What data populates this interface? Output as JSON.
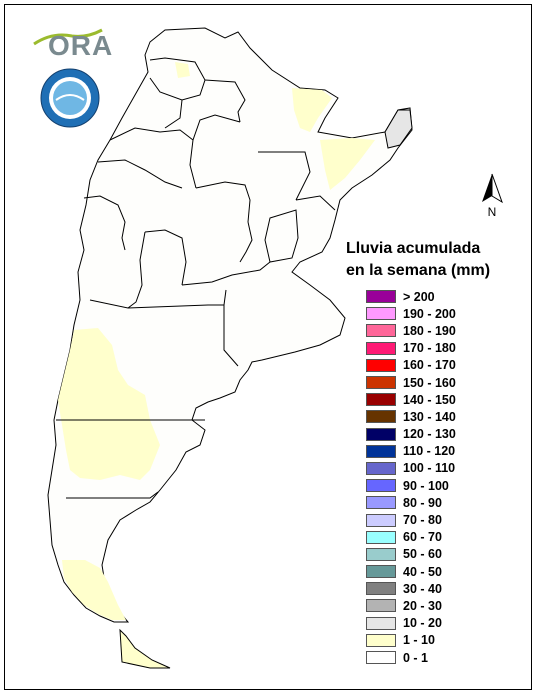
{
  "legend": {
    "title_line1": "Lluvia acumulada",
    "title_line2": "en la semana (mm)",
    "items": [
      {
        "label": "> 200",
        "color": "#990099"
      },
      {
        "label": "190 - 200",
        "color": "#ff99ff"
      },
      {
        "label": "180 - 190",
        "color": "#ff6699"
      },
      {
        "label": "170 - 180",
        "color": "#ff1a75"
      },
      {
        "label": "160 - 170",
        "color": "#ff0000"
      },
      {
        "label": "150 - 160",
        "color": "#cc3300"
      },
      {
        "label": "140 - 150",
        "color": "#990000"
      },
      {
        "label": "130 - 140",
        "color": "#663300"
      },
      {
        "label": "120 - 130",
        "color": "#000066"
      },
      {
        "label": "110 - 120",
        "color": "#003399"
      },
      {
        "label": "100 - 110",
        "color": "#6666cc"
      },
      {
        "label": "90 - 100",
        "color": "#6666ff"
      },
      {
        "label": "80 - 90",
        "color": "#9999ff"
      },
      {
        "label": "70 - 80",
        "color": "#ccccff"
      },
      {
        "label": "60 - 70",
        "color": "#99ffff"
      },
      {
        "label": "50 - 60",
        "color": "#99cccc"
      },
      {
        "label": "40 - 50",
        "color": "#669999"
      },
      {
        "label": "30 - 40",
        "color": "#808080"
      },
      {
        "label": "20 - 30",
        "color": "#b3b3b3"
      },
      {
        "label": "10 - 20",
        "color": "#e6e6e6"
      },
      {
        "label": "1 - 10",
        "color": "#ffffcc"
      },
      {
        "label": "0 - 1",
        "color": "#ffffff"
      }
    ]
  },
  "logo": {
    "text": "ORA"
  },
  "north_arrow": {
    "label": "N"
  },
  "colors": {
    "land": "#fefefc",
    "light_rain": "#ffffcc",
    "gray_area": "#e6e6e6",
    "border": "#000000"
  }
}
